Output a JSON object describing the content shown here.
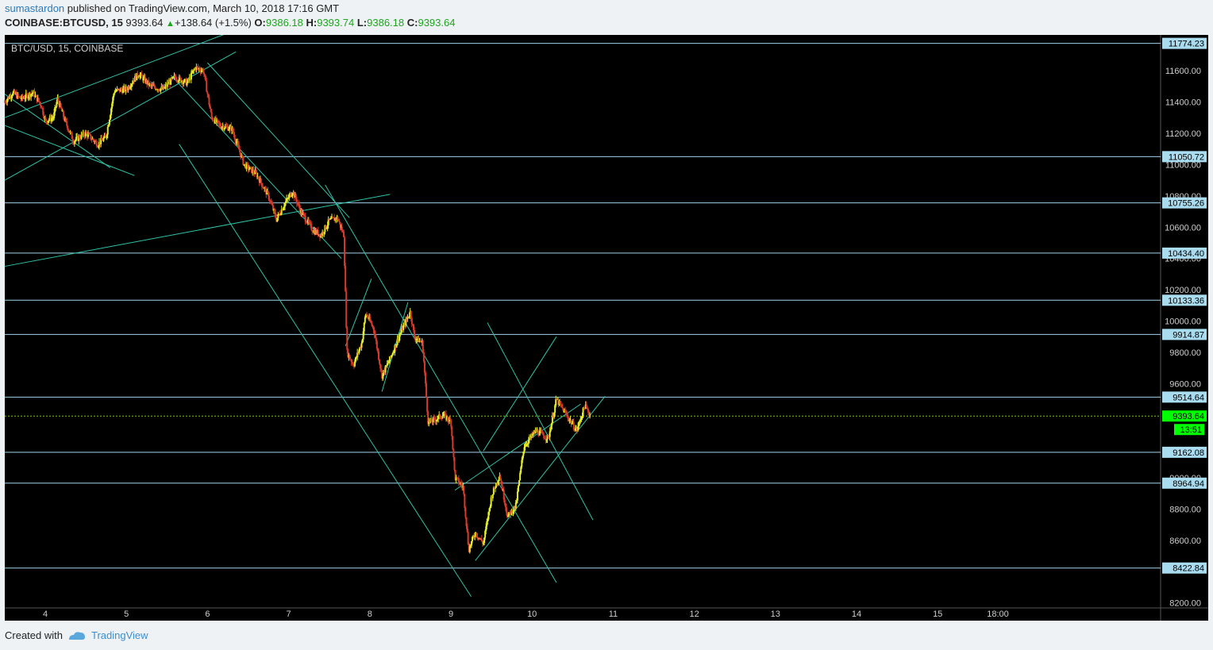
{
  "header": {
    "user": "sumastardon",
    "published": "published on TradingView.com, March 10, 2018 17:16 GMT",
    "symbol": "COINBASE:BTCUSD, 15",
    "last": "9393.64",
    "change": "+138.64 (+1.5%)",
    "o_label": "O:",
    "o": "9386.18",
    "h_label": "H:",
    "h": "9393.74",
    "l_label": "L:",
    "l": "9386.18",
    "c_label": "C:",
    "c": "9393.64"
  },
  "footer": {
    "created": "Created with",
    "brand": "TradingView"
  },
  "colors": {
    "bg": "#000000",
    "up": "#e6ee2a",
    "down": "#d43b2b",
    "channel": "#2ec4a6",
    "level": "#9fd3ea",
    "tag_bg": "#a9dcef",
    "last": "#00ff00",
    "axis_text": "#cfcfcf"
  },
  "chart_data": {
    "type": "candlestick",
    "title": "BTC/USD, 15, COINBASE",
    "ylim": [
      8200,
      11800
    ],
    "y_ticks": [
      "11600.00",
      "11400.00",
      "11200.00",
      "11000.00",
      "10800.00",
      "10600.00",
      "10400.00",
      "10200.00",
      "10000.00",
      "9800.00",
      "9600.00",
      "9000.00",
      "8800.00",
      "8600.00",
      "8200.00"
    ],
    "x_ticks": [
      "4",
      "5",
      "6",
      "7",
      "8",
      "9",
      "10",
      "11",
      "12",
      "13",
      "14",
      "15",
      "18:00"
    ],
    "levels": [
      "11774.23",
      "11050.72",
      "10755.26",
      "10434.40",
      "10133.36",
      "9914.87",
      "9514.64",
      "9162.08",
      "8964.94",
      "8422.84"
    ],
    "last_price": "9393.64",
    "countdown": "13:51",
    "path": [
      [
        "3.5",
        11400
      ],
      [
        "3.6",
        11460
      ],
      [
        "3.7",
        11420
      ],
      [
        "3.85",
        11460
      ],
      [
        "3.95",
        11380
      ],
      [
        "4.0",
        11280
      ],
      [
        "4.1",
        11300
      ],
      [
        "4.15",
        11420
      ],
      [
        "4.25",
        11270
      ],
      [
        "4.35",
        11150
      ],
      [
        "4.5",
        11200
      ],
      [
        "4.65",
        11130
      ],
      [
        "4.75",
        11180
      ],
      [
        "4.85",
        11470
      ],
      [
        "5.0",
        11480
      ],
      [
        "5.15",
        11580
      ],
      [
        "5.3",
        11500
      ],
      [
        "5.45",
        11480
      ],
      [
        "5.6",
        11560
      ],
      [
        "5.75",
        11520
      ],
      [
        "5.85",
        11620
      ],
      [
        "5.95",
        11600
      ],
      [
        "6.05",
        11300
      ],
      [
        "6.15",
        11250
      ],
      [
        "6.3",
        11230
      ],
      [
        "6.45",
        11000
      ],
      [
        "6.6",
        10940
      ],
      [
        "6.75",
        10800
      ],
      [
        "6.85",
        10650
      ],
      [
        "6.95",
        10750
      ],
      [
        "7.05",
        10830
      ],
      [
        "7.15",
        10700
      ],
      [
        "7.3",
        10580
      ],
      [
        "7.4",
        10550
      ],
      [
        "7.5",
        10640
      ],
      [
        "7.6",
        10660
      ],
      [
        "7.68",
        10550
      ],
      [
        "7.72",
        9800
      ],
      [
        "7.8",
        9720
      ],
      [
        "7.9",
        9860
      ],
      [
        "7.95",
        10050
      ],
      [
        "8.05",
        9950
      ],
      [
        "8.15",
        9650
      ],
      [
        "8.25",
        9760
      ],
      [
        "8.4",
        9950
      ],
      [
        "8.5",
        10060
      ],
      [
        "8.55",
        9900
      ],
      [
        "8.65",
        9860
      ],
      [
        "8.72",
        9350
      ],
      [
        "8.8",
        9370
      ],
      [
        "8.9",
        9400
      ],
      [
        "9.0",
        9360
      ],
      [
        "9.05",
        9000
      ],
      [
        "9.15",
        8940
      ],
      [
        "9.22",
        8540
      ],
      [
        "9.3",
        8650
      ],
      [
        "9.4",
        8580
      ],
      [
        "9.5",
        8880
      ],
      [
        "9.6",
        9020
      ],
      [
        "9.7",
        8750
      ],
      [
        "9.8",
        8820
      ],
      [
        "9.9",
        9200
      ],
      [
        "10.05",
        9300
      ],
      [
        "10.2",
        9250
      ],
      [
        "10.3",
        9500
      ],
      [
        "10.45",
        9380
      ],
      [
        "10.55",
        9300
      ],
      [
        "10.65",
        9460
      ],
      [
        "10.72",
        9394
      ]
    ]
  }
}
